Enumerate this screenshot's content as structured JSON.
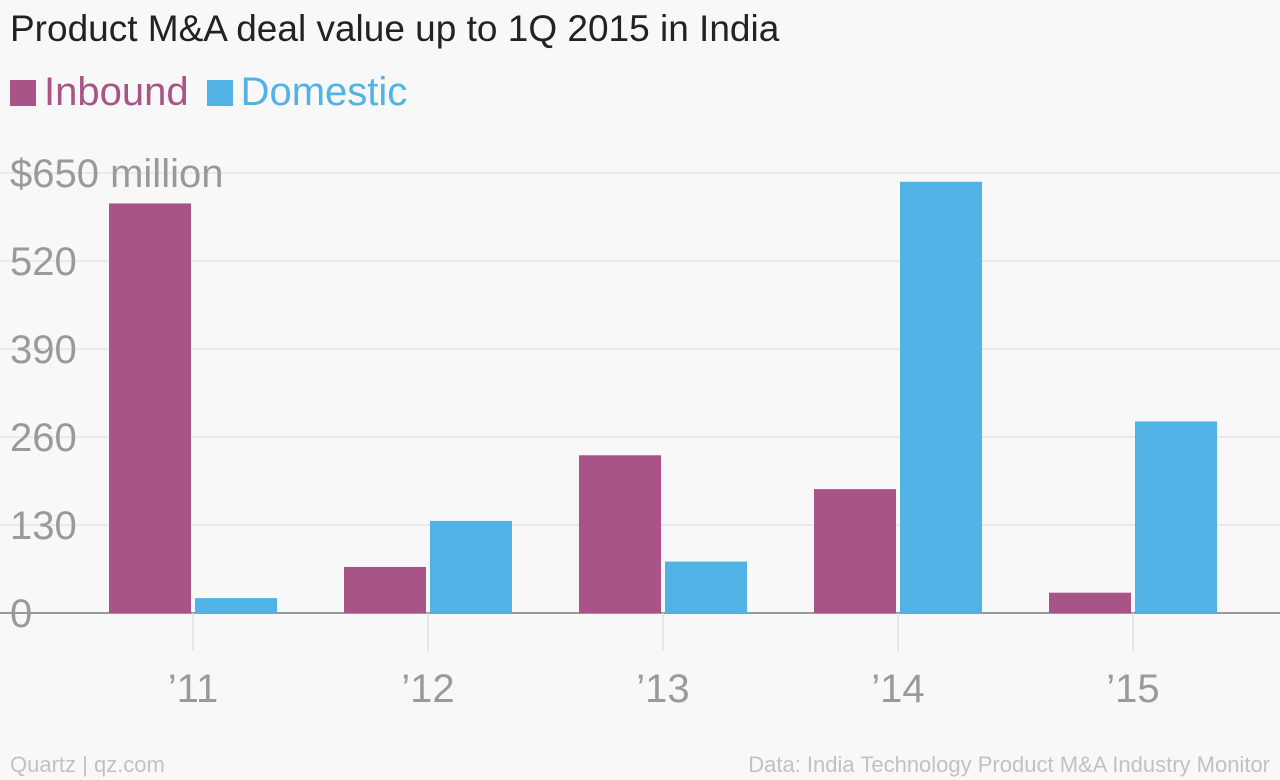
{
  "chart_data": {
    "type": "bar",
    "title": "Product M&A deal value up to 1Q 2015 in India",
    "categories": [
      "’11",
      "’12",
      "’13",
      "’14",
      "’15"
    ],
    "series": [
      {
        "name": "Inbound",
        "color": "#a95486",
        "values": [
          605,
          68,
          233,
          183,
          30
        ]
      },
      {
        "name": "Domestic",
        "color": "#51b2e5",
        "values": [
          22,
          136,
          76,
          637,
          283
        ]
      }
    ],
    "ylim": [
      0,
      650
    ],
    "yticks": [
      0,
      130,
      260,
      390,
      520,
      650
    ],
    "ytick_labels": [
      "0",
      "130",
      "260",
      "390",
      "520",
      "$650 million"
    ],
    "xlabel": "",
    "ylabel": "",
    "grid": true,
    "legend": "top-left"
  },
  "footer": {
    "credit": "Quartz | qz.com",
    "source": "Data: India Technology Product M&A Industry Monitor"
  },
  "colors": {
    "background": "#f8f8f8",
    "grid": "#e6e6e6",
    "axis": "#999999",
    "tick_text": "#9a9a9a"
  }
}
